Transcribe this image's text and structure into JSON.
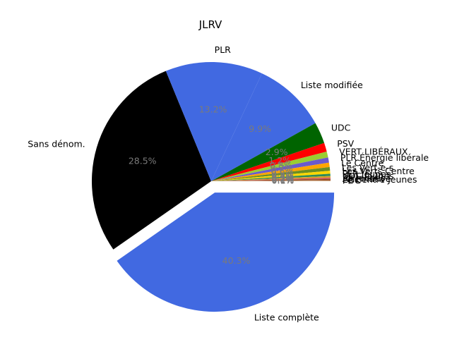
{
  "chart_data": {
    "type": "pie",
    "title": "JLRV",
    "start_angle_deg": 0,
    "counterclock": false,
    "explode": {
      "index": 0,
      "amount": 0.1
    },
    "slices": [
      {
        "label": "Liste complète",
        "value": 40.3,
        "pct_label": "40.3%",
        "color": "#4169E1"
      },
      {
        "label": "Sans dénom.",
        "value": 28.5,
        "pct_label": "28.5%",
        "color": "#000000"
      },
      {
        "label": "PLR",
        "value": 13.2,
        "pct_label": "13.2%",
        "color": "#4169E1"
      },
      {
        "label": "Liste modifiée",
        "value": 9.9,
        "pct_label": "9.9%",
        "color": "#4169E1"
      },
      {
        "label": "UDC",
        "value": 2.9,
        "pct_label": "2.9%",
        "color": "#006400"
      },
      {
        "label": "PSV",
        "value": 1.2,
        "pct_label": "1.2%",
        "color": "#FF0000"
      },
      {
        "label": "VERT LIBÉRAUX",
        "value": 0.8,
        "pct_label": "0.8%",
        "color": "#9ACD32"
      },
      {
        "label": "PLR Énergie libérale",
        "value": 0.7,
        "pct_label": "0.7%",
        "color": "#6A5ACD"
      },
      {
        "label": "Le Centre",
        "value": 0.6,
        "pct_label": "0.6%",
        "color": "#FFA500"
      },
      {
        "label": "Les Vert-e-s",
        "value": 0.5,
        "pct_label": "0.5%",
        "color": "#6B8E23"
      },
      {
        "label": "Les Verts Centre",
        "value": 0.4,
        "pct_label": "0.4%",
        "color": "#FFD700"
      },
      {
        "label": "PLR Jeunes",
        "value": 0.3,
        "pct_label": "0.3%",
        "color": "#2E8B57"
      },
      {
        "label": "UDC Jeunes",
        "value": 0.2,
        "pct_label": "0.2%",
        "color": "#DAA520"
      },
      {
        "label": "PS Jeunes",
        "value": 0.2,
        "pct_label": "0.2%",
        "color": "#CD5C5C"
      },
      {
        "label": "Alternative",
        "value": 0.1,
        "pct_label": "0.1%",
        "color": "#8B4513"
      },
      {
        "label": "Le Centre Jeunes",
        "value": 0.1,
        "pct_label": "0.1%",
        "color": "#A0522D"
      },
      {
        "label": "PDC",
        "value": 0.1,
        "pct_label": "0.1%",
        "color": "#D2B48C"
      }
    ]
  }
}
